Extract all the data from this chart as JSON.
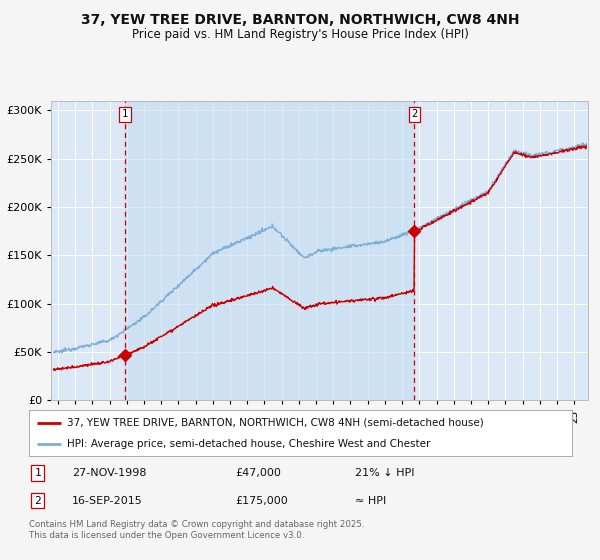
{
  "title": "37, YEW TREE DRIVE, BARNTON, NORTHWICH, CW8 4NH",
  "subtitle": "Price paid vs. HM Land Registry's House Price Index (HPI)",
  "background_color": "#f5f5f5",
  "plot_bg_color": "#dce8f5",
  "grid_color": "#ffffff",
  "marker1_date_num": 1998.9,
  "marker1_value": 47000,
  "marker1_label": "27-NOV-1998",
  "marker1_price": "£47,000",
  "marker1_note": "21% ↓ HPI",
  "marker2_date_num": 2015.71,
  "marker2_value": 175000,
  "marker2_label": "16-SEP-2015",
  "marker2_price": "£175,000",
  "marker2_note": "≈ HPI",
  "legend_line1": "37, YEW TREE DRIVE, BARNTON, NORTHWICH, CW8 4NH (semi-detached house)",
  "legend_line2": "HPI: Average price, semi-detached house, Cheshire West and Chester",
  "footer": "Contains HM Land Registry data © Crown copyright and database right 2025.\nThis data is licensed under the Open Government Licence v3.0.",
  "red_color": "#cc0000",
  "blue_color": "#7ab0d4",
  "dashed_red": "#cc0000",
  "ylim": [
    0,
    310000
  ],
  "yticks": [
    0,
    50000,
    100000,
    150000,
    200000,
    250000,
    300000
  ],
  "xlim_start": 1994.6,
  "xlim_end": 2025.8
}
